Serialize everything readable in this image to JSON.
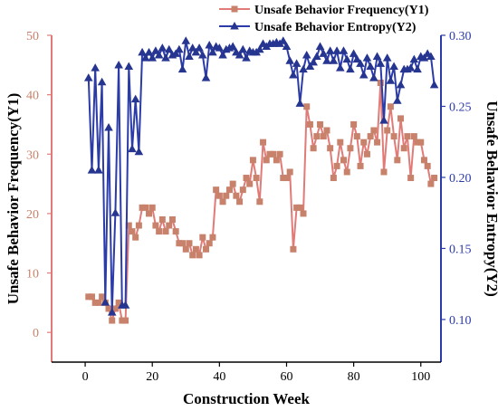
{
  "colors": {
    "y1": "#e07b78",
    "y1_marker": "#c8826c",
    "y2": "#2b3ba8",
    "y2_marker": "#253590",
    "axis": "#000000"
  },
  "chart_data": {
    "type": "line",
    "xlabel": "Construction Week",
    "ylabel_left": "Unsafe Behavior Frequency(Y1)",
    "ylabel_right": "Unsafe Behavior Entropy(Y2)",
    "xlim": [
      -10,
      106
    ],
    "ylim_left": [
      -5,
      50
    ],
    "ylim_right": [
      0.07,
      0.3
    ],
    "xticks": [
      0,
      20,
      40,
      60,
      80,
      100
    ],
    "yticks_left": [
      0,
      10,
      20,
      30,
      40,
      50
    ],
    "yticks_right": [
      0.1,
      0.15,
      0.2,
      0.25,
      0.3
    ],
    "legend_position": "top-right",
    "grid": false,
    "series": [
      {
        "name": "Unsafe Behavior Frequency(Y1)",
        "axis": "left",
        "marker": "square",
        "x": [
          1,
          2,
          3,
          4,
          5,
          6,
          7,
          8,
          9,
          10,
          11,
          12,
          13,
          14,
          15,
          16,
          17,
          18,
          19,
          20,
          21,
          22,
          23,
          24,
          25,
          26,
          27,
          28,
          29,
          30,
          31,
          32,
          33,
          34,
          35,
          36,
          37,
          38,
          39,
          40,
          41,
          42,
          43,
          44,
          45,
          46,
          47,
          48,
          49,
          50,
          51,
          52,
          53,
          54,
          55,
          56,
          57,
          58,
          59,
          60,
          61,
          62,
          63,
          64,
          65,
          66,
          67,
          68,
          69,
          70,
          71,
          72,
          73,
          74,
          75,
          76,
          77,
          78,
          79,
          80,
          81,
          82,
          83,
          84,
          85,
          86,
          87,
          88,
          89,
          90,
          91,
          92,
          93,
          94,
          95,
          96,
          97,
          98,
          99,
          100,
          101,
          102,
          103,
          104
        ],
        "y": [
          6,
          6,
          5,
          5,
          6,
          5,
          4,
          2,
          4,
          5,
          2,
          2,
          18,
          17,
          16,
          18,
          21,
          21,
          20,
          21,
          18,
          17,
          19,
          17,
          18,
          19,
          17,
          15,
          15,
          14,
          15,
          13,
          14,
          13,
          16,
          14,
          15,
          16,
          24,
          23,
          22,
          23,
          24,
          25,
          23,
          22,
          24,
          26,
          25,
          29,
          26,
          22,
          32,
          29,
          30,
          30,
          29,
          30,
          26,
          26,
          27,
          14,
          21,
          21,
          20,
          38,
          35,
          31,
          33,
          35,
          33,
          34,
          31,
          26,
          28,
          32,
          29,
          27,
          31,
          35,
          33,
          28,
          32,
          30,
          33,
          34,
          32,
          42,
          27,
          34,
          38,
          33,
          29,
          36,
          31,
          33,
          26,
          33,
          32,
          32,
          29,
          28,
          25,
          26
        ]
      },
      {
        "name": "Unsafe Behavior Entropy(Y2)",
        "axis": "right",
        "marker": "triangle",
        "x": [
          1,
          2,
          3,
          4,
          5,
          6,
          7,
          8,
          9,
          10,
          11,
          12,
          13,
          14,
          15,
          16,
          17,
          18,
          19,
          20,
          21,
          22,
          23,
          24,
          25,
          26,
          27,
          28,
          29,
          30,
          31,
          32,
          33,
          34,
          35,
          36,
          37,
          38,
          39,
          40,
          41,
          42,
          43,
          44,
          45,
          46,
          47,
          48,
          49,
          50,
          51,
          52,
          53,
          54,
          55,
          56,
          57,
          58,
          59,
          60,
          61,
          62,
          63,
          64,
          65,
          66,
          67,
          68,
          69,
          70,
          71,
          72,
          73,
          74,
          75,
          76,
          77,
          78,
          79,
          80,
          81,
          82,
          83,
          84,
          85,
          86,
          87,
          88,
          89,
          90,
          91,
          92,
          93,
          94,
          95,
          96,
          97,
          98,
          99,
          100,
          101,
          102,
          103,
          104
        ],
        "y": [
          0.27,
          0.205,
          0.277,
          0.205,
          0.267,
          0.112,
          0.235,
          0.105,
          0.175,
          0.279,
          0.11,
          0.11,
          0.278,
          0.22,
          0.255,
          0.218,
          0.288,
          0.284,
          0.288,
          0.284,
          0.289,
          0.286,
          0.291,
          0.284,
          0.29,
          0.286,
          0.287,
          0.29,
          0.276,
          0.296,
          0.285,
          0.291,
          0.288,
          0.291,
          0.286,
          0.27,
          0.293,
          0.288,
          0.292,
          0.291,
          0.286,
          0.29,
          0.291,
          0.292,
          0.288,
          0.286,
          0.29,
          0.284,
          0.289,
          0.288,
          0.288,
          0.29,
          0.294,
          0.292,
          0.294,
          0.294,
          0.295,
          0.294,
          0.296,
          0.292,
          0.282,
          0.272,
          0.28,
          0.252,
          0.276,
          0.286,
          0.278,
          0.281,
          0.285,
          0.292,
          0.287,
          0.282,
          0.289,
          0.282,
          0.289,
          0.277,
          0.289,
          0.283,
          0.276,
          0.287,
          0.283,
          0.28,
          0.272,
          0.284,
          0.278,
          0.27,
          0.285,
          0.28,
          0.24,
          0.284,
          0.268,
          0.278,
          0.254,
          0.265,
          0.276,
          0.276,
          0.277,
          0.283,
          0.276,
          0.285,
          0.284,
          0.287,
          0.285,
          0.265
        ]
      }
    ]
  }
}
